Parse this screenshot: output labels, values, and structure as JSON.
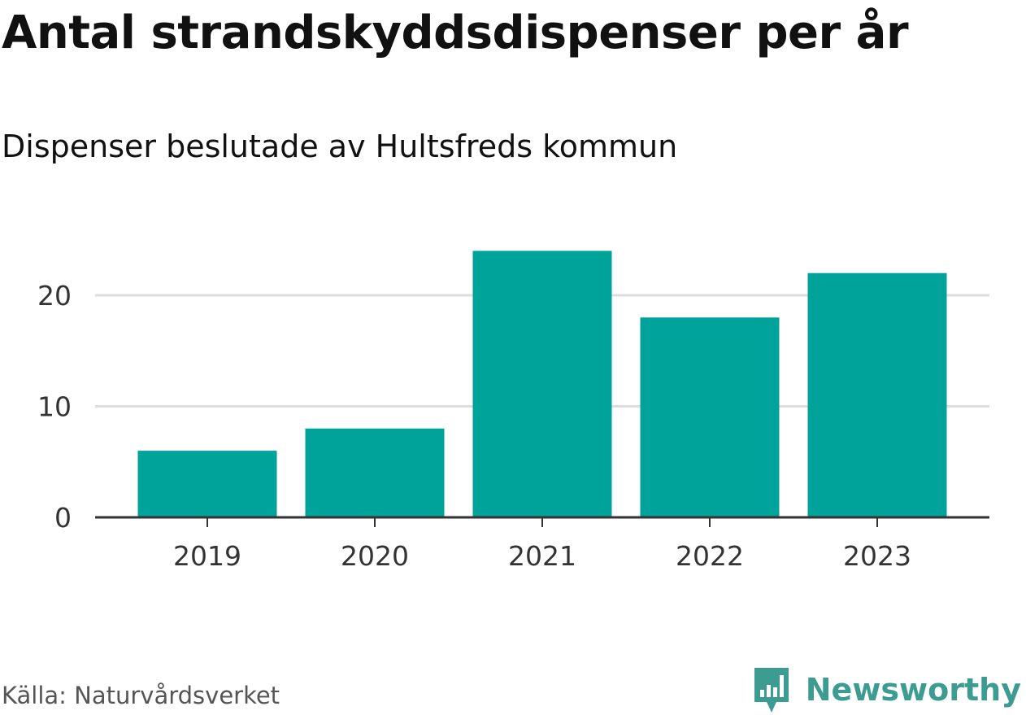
{
  "chart_data": {
    "type": "bar",
    "title": "Antal strandskyddsdispenser per år",
    "subtitle": "Dispenser beslutade av Hultsfreds kommun",
    "categories": [
      "2019",
      "2020",
      "2021",
      "2022",
      "2023"
    ],
    "values": [
      6,
      8,
      24,
      18,
      22
    ],
    "ylim": [
      0,
      26
    ],
    "yticks": [
      0,
      10,
      20
    ],
    "grid": true,
    "bar_color": "#00a39a"
  },
  "footer": {
    "source": "Källa: Naturvårdsverket",
    "brand": "Newsworthy",
    "brand_color": "#3d9c92"
  }
}
